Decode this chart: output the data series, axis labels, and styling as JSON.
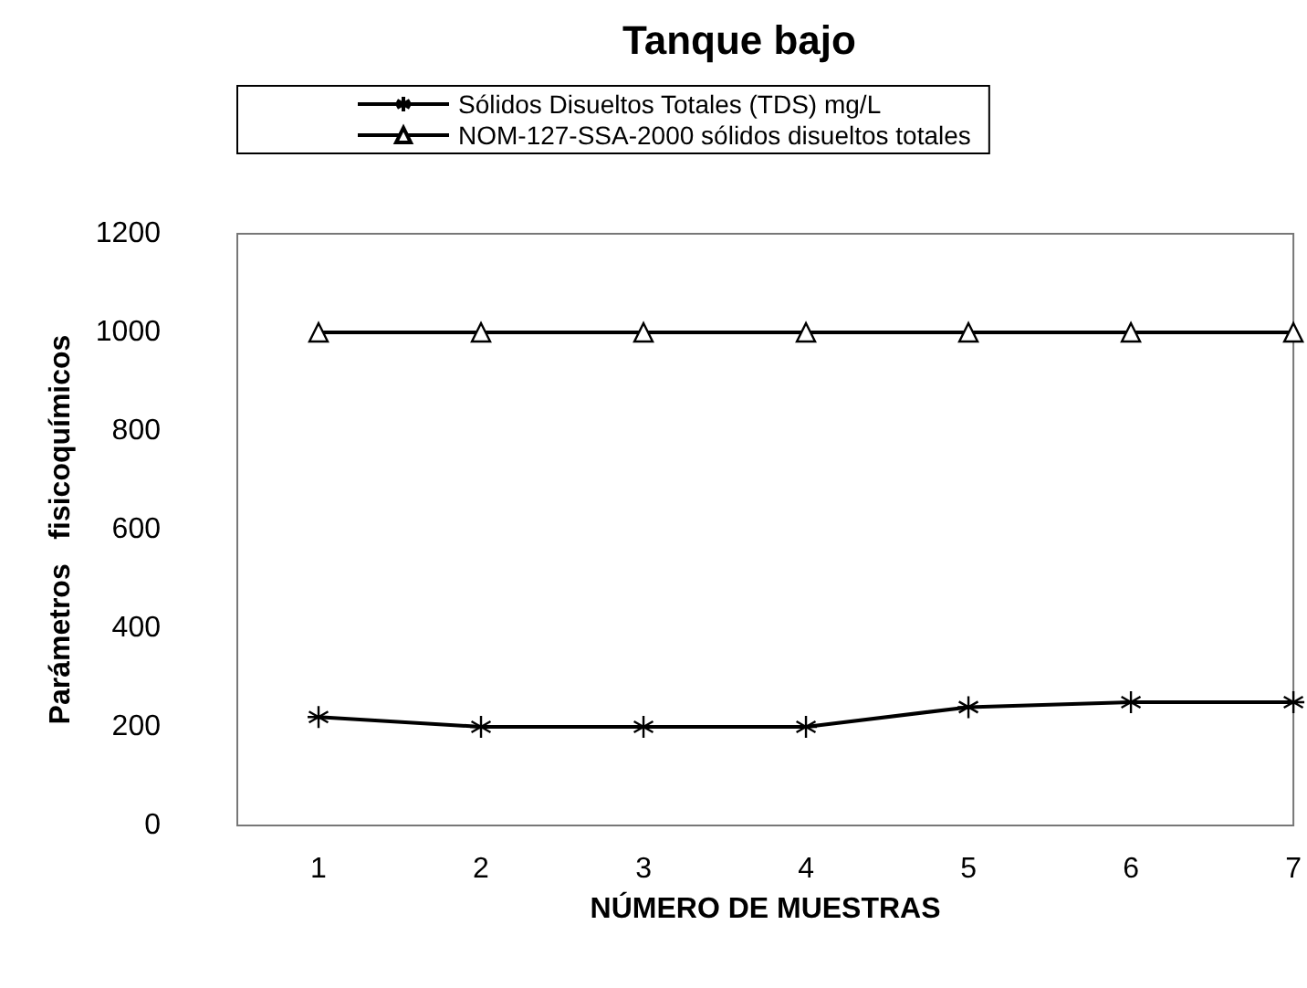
{
  "chart_data": {
    "type": "line",
    "title": "Tanque bajo",
    "xlabel": "NÚMERO DE MUESTRAS",
    "ylabel": "Parámetros   fisicoquímicos",
    "x": [
      1,
      2,
      3,
      4,
      5,
      6,
      7
    ],
    "series": [
      {
        "name": "Sólidos Disueltos Totales (TDS) mg/L",
        "color": "#000000",
        "marker": "cross",
        "values": [
          220,
          200,
          200,
          200,
          240,
          250,
          250
        ]
      },
      {
        "name": "NOM-127-SSA-2000 sólidos disueltos totales",
        "color": "#000000",
        "marker": "triangle",
        "values": [
          1000,
          1000,
          1000,
          1000,
          1000,
          1000,
          1000
        ]
      }
    ],
    "xlim": [
      0.5,
      7
    ],
    "xticks": [
      1,
      2,
      3,
      4,
      5,
      6,
      7
    ],
    "ylim": [
      0,
      1200
    ],
    "yticks": [
      0,
      200,
      400,
      600,
      800,
      1000,
      1200
    ],
    "grid": false,
    "legend": "top",
    "line_style": "solid"
  }
}
